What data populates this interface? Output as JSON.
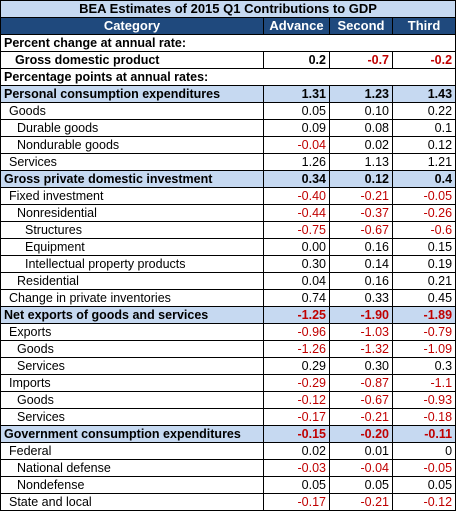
{
  "title": "BEA Estimates of 2015 Q1 Contributions to GDP",
  "headers": {
    "category": "Category",
    "advance": "Advance",
    "second": "Second",
    "third": "Third"
  },
  "colors": {
    "header_bg": "#1f497d",
    "highlight_bg": "#c6d9f1",
    "negative": "#c00000"
  },
  "rows": [
    {
      "label": "Percent change at annual rate:",
      "type": "section"
    },
    {
      "label": "Gross domestic product",
      "type": "bold",
      "advance": "0.2",
      "second": "-0.7",
      "third": "-0.2"
    },
    {
      "label": "Percentage points at annual rates:",
      "type": "section"
    },
    {
      "label": "Personal consumption expenditures",
      "type": "major",
      "advance": "1.31",
      "second": "1.23",
      "third": "1.43"
    },
    {
      "label": "Goods",
      "type": "l1",
      "advance": "0.05",
      "second": "0.10",
      "third": "0.22"
    },
    {
      "label": "Durable goods",
      "type": "l2",
      "advance": "0.09",
      "second": "0.08",
      "third": "0.1"
    },
    {
      "label": "Nondurable goods",
      "type": "l2",
      "advance": "-0.04",
      "second": "0.02",
      "third": "0.12"
    },
    {
      "label": "Services",
      "type": "l1",
      "advance": "1.26",
      "second": "1.13",
      "third": "1.21"
    },
    {
      "label": "Gross private domestic investment",
      "type": "major",
      "advance": "0.34",
      "second": "0.12",
      "third": "0.4"
    },
    {
      "label": "Fixed investment",
      "type": "l1",
      "advance": "-0.40",
      "second": "-0.21",
      "third": "-0.05"
    },
    {
      "label": "Nonresidential",
      "type": "l2",
      "advance": "-0.44",
      "second": "-0.37",
      "third": "-0.26"
    },
    {
      "label": "Structures",
      "type": "l3",
      "advance": "-0.75",
      "second": "-0.67",
      "third": "-0.6"
    },
    {
      "label": "Equipment",
      "type": "l3",
      "advance": "0.00",
      "second": "0.16",
      "third": "0.15"
    },
    {
      "label": "Intellectual property products",
      "type": "l3",
      "advance": "0.30",
      "second": "0.14",
      "third": "0.19"
    },
    {
      "label": "Residential",
      "type": "l2",
      "advance": "0.04",
      "second": "0.16",
      "third": "0.21"
    },
    {
      "label": "Change in private inventories",
      "type": "l1",
      "advance": "0.74",
      "second": "0.33",
      "third": "0.45"
    },
    {
      "label": "Net exports of goods and services",
      "type": "major",
      "advance": "-1.25",
      "second": "-1.90",
      "third": "-1.89"
    },
    {
      "label": "Exports",
      "type": "l1",
      "advance": "-0.96",
      "second": "-1.03",
      "third": "-0.79"
    },
    {
      "label": "Goods",
      "type": "l2",
      "advance": "-1.26",
      "second": "-1.32",
      "third": "-1.09"
    },
    {
      "label": "Services",
      "type": "l2",
      "advance": "0.29",
      "second": "0.30",
      "third": "0.3"
    },
    {
      "label": "Imports",
      "type": "l1",
      "advance": "-0.29",
      "second": "-0.87",
      "third": "-1.1"
    },
    {
      "label": "Goods",
      "type": "l2",
      "advance": "-0.12",
      "second": "-0.67",
      "third": "-0.93"
    },
    {
      "label": "Services",
      "type": "l2",
      "advance": "-0.17",
      "second": "-0.21",
      "third": "-0.18"
    },
    {
      "label": "Government consumption expenditures",
      "type": "major",
      "advance": "-0.15",
      "second": "-0.20",
      "third": "-0.11"
    },
    {
      "label": "Federal",
      "type": "l1",
      "advance": "0.02",
      "second": "0.01",
      "third": "0"
    },
    {
      "label": "National defense",
      "type": "l2",
      "advance": "-0.03",
      "second": "-0.04",
      "third": "-0.05"
    },
    {
      "label": "Nondefense",
      "type": "l2",
      "advance": "0.05",
      "second": "0.05",
      "third": "0.05"
    },
    {
      "label": "State and local",
      "type": "l1",
      "advance": "-0.17",
      "second": "-0.21",
      "third": "-0.12"
    }
  ]
}
